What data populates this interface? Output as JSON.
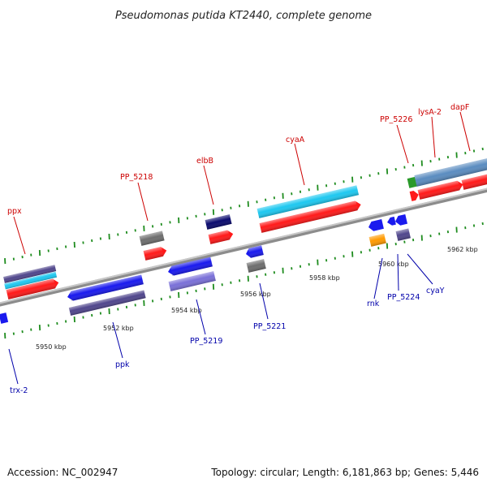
{
  "title": "Pseudomonas putida KT2440, complete genome",
  "footer": {
    "accession": "Accession: NC_002947",
    "summary": "Topology: circular; Length: 6,181,863 bp; Genes: 5,446"
  },
  "colors": {
    "label_top": "#cc0000",
    "label_bottom": "#0000aa",
    "backbone": "#8c8c8c",
    "tick": "#1e8c1e",
    "red": "#ff1a1a",
    "cyan": "#1ec8f0",
    "blue": "#1a1aee",
    "navy": "#0a0a6e",
    "purple": "#50468c",
    "lavender": "#7a70d8",
    "gray": "#6e6e6e",
    "steel": "#5a8cc0",
    "green": "#2a9a2a",
    "orange": "#ff9a00"
  },
  "scale_labels": [
    "5950 kbp",
    "5952 kbp",
    "5954 kbp",
    "5956 kbp",
    "5958 kbp",
    "5960 kbp",
    "5962 kbp"
  ],
  "labels_top": [
    "ppx",
    "PP_5218",
    "elbB",
    "cyaA",
    "PP_5226",
    "lysA-2",
    "dapF"
  ],
  "labels_bottom": [
    "trx-2",
    "ppk",
    "PP_5219",
    "PP_5221",
    "rnk",
    "PP_5224",
    "cyaY"
  ]
}
